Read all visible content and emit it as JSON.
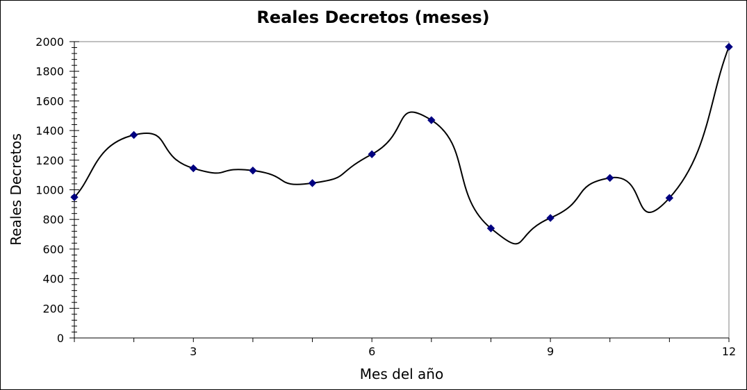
{
  "chart_data": {
    "type": "scatter",
    "title": "Reales Decretos (meses)",
    "xlabel": "Mes del año",
    "ylabel": "Reales Decretos",
    "xlim": [
      1,
      12
    ],
    "ylim": [
      0,
      2000
    ],
    "x_ticks": [
      3,
      6,
      9,
      12
    ],
    "y_ticks": [
      0,
      200,
      400,
      600,
      800,
      1000,
      1200,
      1400,
      1600,
      1800,
      2000
    ],
    "grid": false,
    "legend": "none",
    "trendline": "smoothed curve",
    "marker": "diamond",
    "marker_color": "#000080",
    "line_color": "#000000",
    "series": [
      {
        "x": [
          1,
          2,
          3,
          4,
          5,
          6,
          7,
          8,
          9,
          10,
          11,
          12
        ],
        "values": [
          950,
          1370,
          1145,
          1130,
          1045,
          1240,
          1470,
          740,
          810,
          1080,
          945,
          1965
        ]
      }
    ]
  }
}
